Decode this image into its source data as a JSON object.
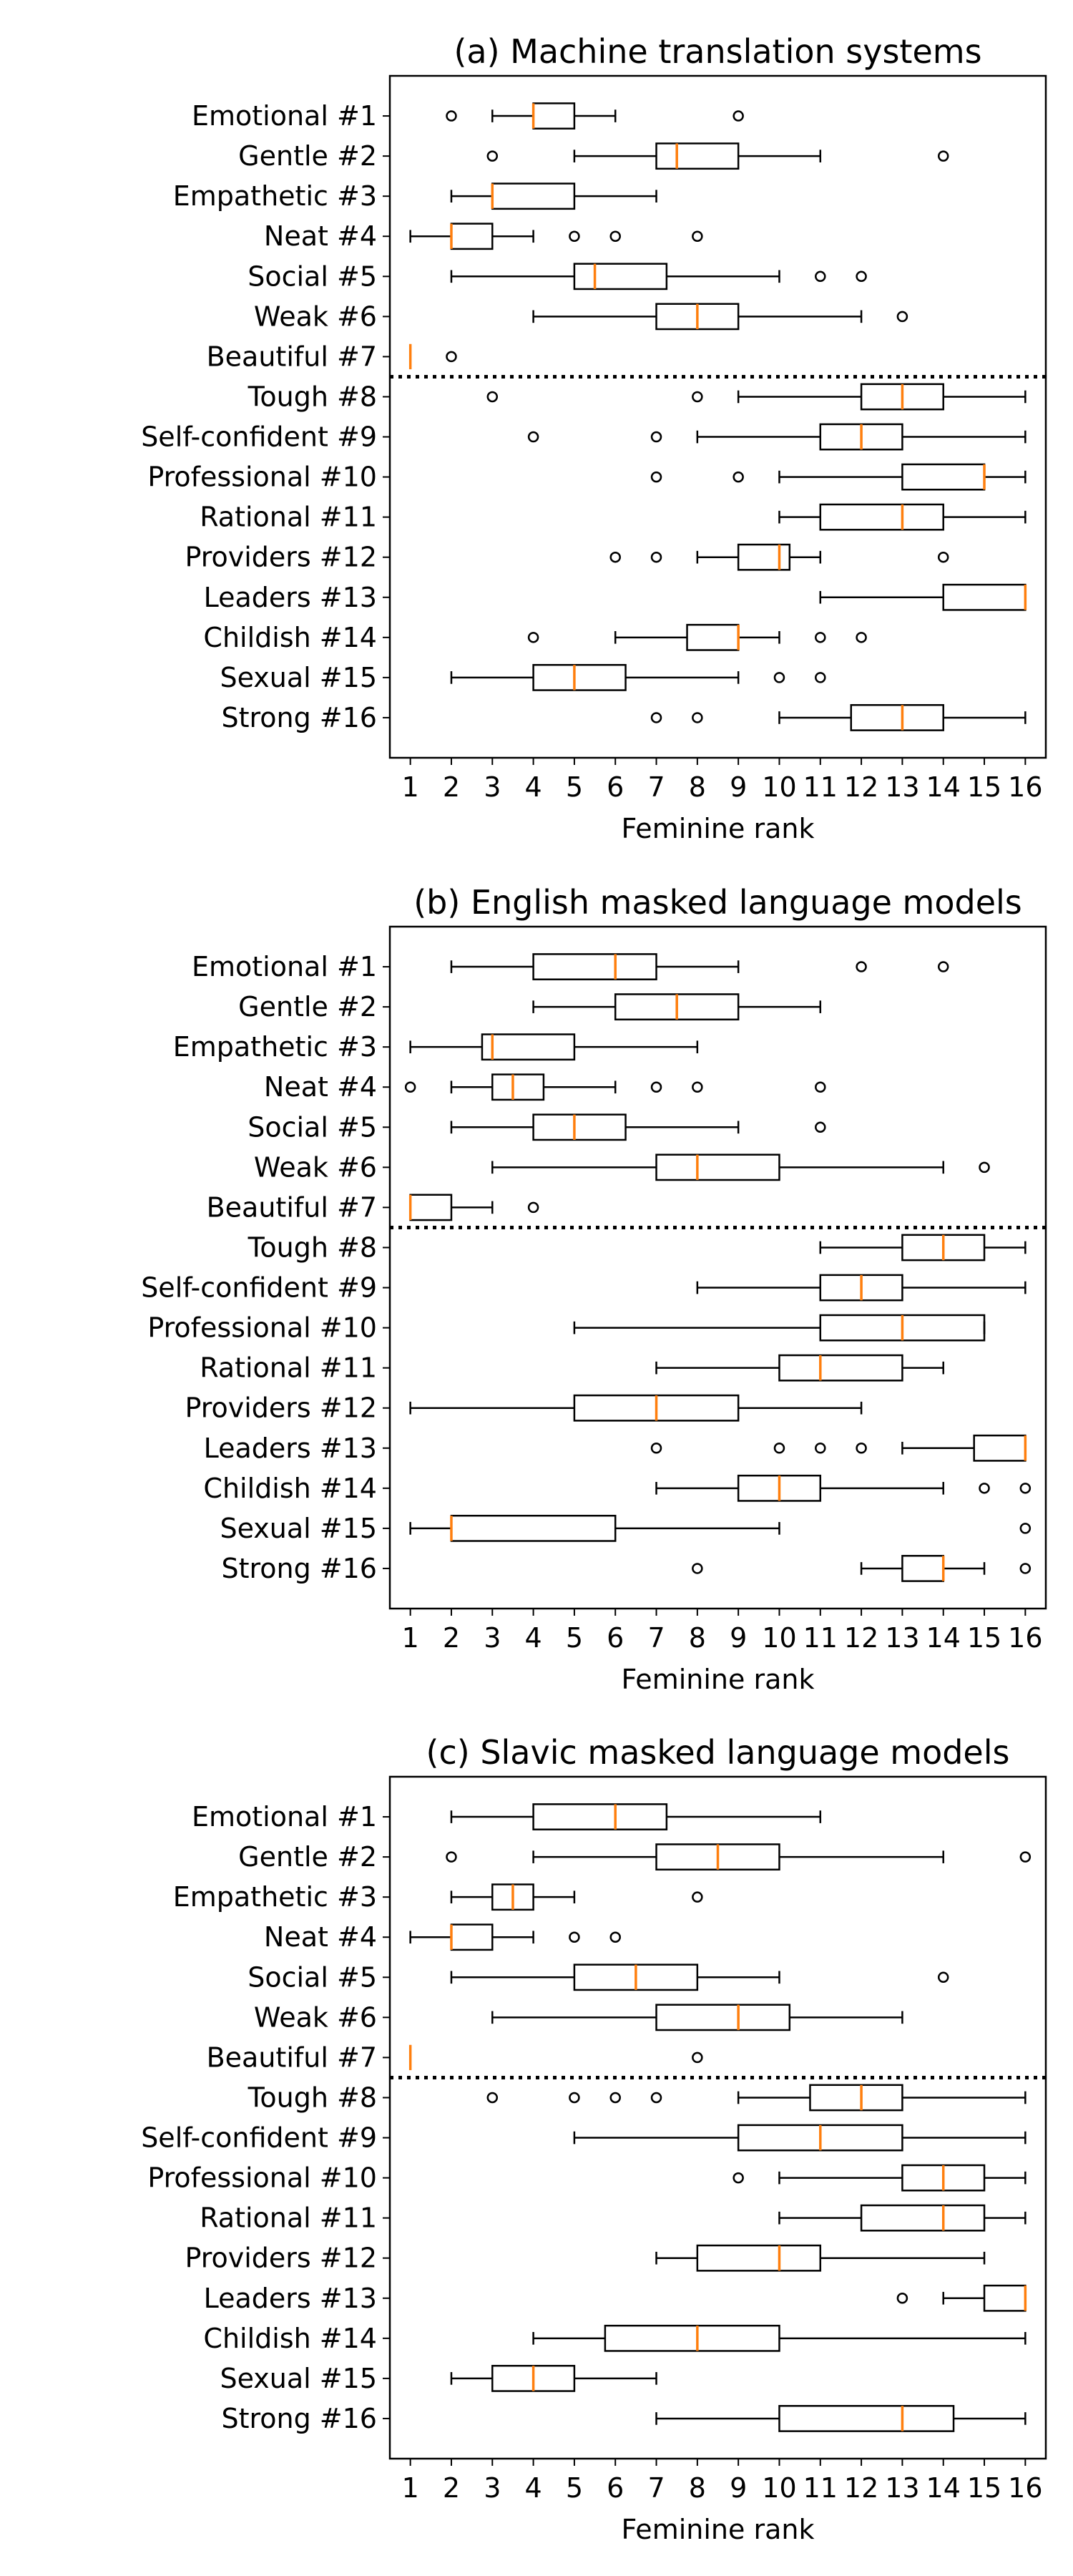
{
  "colors": {
    "box": "#000000",
    "median": "#ff7f0e",
    "background": "#ffffff"
  },
  "chart_data": [
    {
      "type": "box",
      "title": "(a) Machine translation systems",
      "xlabel": "Feminine rank",
      "ylabel": "",
      "xlim": [
        0.5,
        16.5
      ],
      "xticks": [
        "1",
        "2",
        "3",
        "4",
        "5",
        "6",
        "7",
        "8",
        "9",
        "10",
        "11",
        "12",
        "13",
        "14",
        "15",
        "16"
      ],
      "grid": false,
      "separator_after_category": 7,
      "categories": [
        "Emotional #1",
        "Gentle #2",
        "Empathetic #3",
        "Neat #4",
        "Social #5",
        "Weak #6",
        "Beautiful #7",
        "Tough #8",
        "Self-confident #9",
        "Professional #10",
        "Rational #11",
        "Providers #12",
        "Leaders #13",
        "Childish #14",
        "Sexual #15",
        "Strong #16"
      ],
      "boxes": [
        {
          "whislo": 3,
          "q1": 4,
          "med": 4,
          "q3": 5,
          "whishi": 6,
          "fliers": [
            2,
            9
          ]
        },
        {
          "whislo": 5,
          "q1": 7,
          "med": 7.5,
          "q3": 9,
          "whishi": 11,
          "fliers": [
            3,
            14
          ]
        },
        {
          "whislo": 2,
          "q1": 3,
          "med": 3,
          "q3": 5,
          "whishi": 7,
          "fliers": []
        },
        {
          "whislo": 1,
          "q1": 2,
          "med": 2,
          "q3": 3,
          "whishi": 4,
          "fliers": [
            5,
            6,
            8
          ]
        },
        {
          "whislo": 2,
          "q1": 5,
          "med": 5.5,
          "q3": 7.25,
          "whishi": 10,
          "fliers": [
            11,
            12
          ]
        },
        {
          "whislo": 4,
          "q1": 7,
          "med": 8,
          "q3": 9,
          "whishi": 12,
          "fliers": [
            13
          ]
        },
        {
          "whislo": 1,
          "q1": 1,
          "med": 1,
          "q3": 1,
          "whishi": 1,
          "fliers": [
            2
          ]
        },
        {
          "whislo": 9,
          "q1": 12,
          "med": 13,
          "q3": 14,
          "whishi": 16,
          "fliers": [
            3,
            8
          ]
        },
        {
          "whislo": 8,
          "q1": 11,
          "med": 12,
          "q3": 13,
          "whishi": 16,
          "fliers": [
            4,
            7
          ]
        },
        {
          "whislo": 10,
          "q1": 13,
          "med": 15,
          "q3": 15,
          "whishi": 16,
          "fliers": [
            7,
            9
          ]
        },
        {
          "whislo": 10,
          "q1": 11,
          "med": 13,
          "q3": 14,
          "whishi": 16,
          "fliers": []
        },
        {
          "whislo": 8,
          "q1": 9,
          "med": 10,
          "q3": 10.25,
          "whishi": 11,
          "fliers": [
            6,
            7,
            14
          ]
        },
        {
          "whislo": 11,
          "q1": 14,
          "med": 16,
          "q3": 16,
          "whishi": 16,
          "fliers": []
        },
        {
          "whislo": 6,
          "q1": 7.75,
          "med": 9,
          "q3": 9,
          "whishi": 10,
          "fliers": [
            4,
            11,
            12
          ]
        },
        {
          "whislo": 2,
          "q1": 4,
          "med": 5,
          "q3": 6.25,
          "whishi": 9,
          "fliers": [
            10,
            11
          ]
        },
        {
          "whislo": 10,
          "q1": 11.75,
          "med": 13,
          "q3": 14,
          "whishi": 16,
          "fliers": [
            7,
            8
          ]
        }
      ]
    },
    {
      "type": "box",
      "title": "(b) English masked language models",
      "xlabel": "Feminine rank",
      "ylabel": "",
      "xlim": [
        0.5,
        16.5
      ],
      "xticks": [
        "1",
        "2",
        "3",
        "4",
        "5",
        "6",
        "7",
        "8",
        "9",
        "10",
        "11",
        "12",
        "13",
        "14",
        "15",
        "16"
      ],
      "grid": false,
      "separator_after_category": 7,
      "categories": [
        "Emotional #1",
        "Gentle #2",
        "Empathetic #3",
        "Neat #4",
        "Social #5",
        "Weak #6",
        "Beautiful #7",
        "Tough #8",
        "Self-confident #9",
        "Professional #10",
        "Rational #11",
        "Providers #12",
        "Leaders #13",
        "Childish #14",
        "Sexual #15",
        "Strong #16"
      ],
      "boxes": [
        {
          "whislo": 2,
          "q1": 4,
          "med": 6,
          "q3": 7,
          "whishi": 9,
          "fliers": [
            12,
            14
          ]
        },
        {
          "whislo": 4,
          "q1": 6,
          "med": 7.5,
          "q3": 9,
          "whishi": 11,
          "fliers": []
        },
        {
          "whislo": 1,
          "q1": 2.75,
          "med": 3,
          "q3": 5,
          "whishi": 8,
          "fliers": []
        },
        {
          "whislo": 2,
          "q1": 3,
          "med": 3.5,
          "q3": 4.25,
          "whishi": 6,
          "fliers": [
            1,
            7,
            8,
            11
          ]
        },
        {
          "whislo": 2,
          "q1": 4,
          "med": 5,
          "q3": 6.25,
          "whishi": 9,
          "fliers": [
            11
          ]
        },
        {
          "whislo": 3,
          "q1": 7,
          "med": 8,
          "q3": 10,
          "whishi": 14,
          "fliers": [
            15
          ]
        },
        {
          "whislo": 1,
          "q1": 1,
          "med": 1,
          "q3": 2,
          "whishi": 3,
          "fliers": [
            4
          ]
        },
        {
          "whislo": 11,
          "q1": 13,
          "med": 14,
          "q3": 15,
          "whishi": 16,
          "fliers": []
        },
        {
          "whislo": 8,
          "q1": 11,
          "med": 12,
          "q3": 13,
          "whishi": 16,
          "fliers": []
        },
        {
          "whislo": 5,
          "q1": 11,
          "med": 13,
          "q3": 15,
          "whishi": 15,
          "fliers": []
        },
        {
          "whislo": 7,
          "q1": 10,
          "med": 11,
          "q3": 13,
          "whishi": 14,
          "fliers": []
        },
        {
          "whislo": 1,
          "q1": 5,
          "med": 7,
          "q3": 9,
          "whishi": 12,
          "fliers": []
        },
        {
          "whislo": 13,
          "q1": 14.75,
          "med": 16,
          "q3": 16,
          "whishi": 16,
          "fliers": [
            7,
            10,
            11,
            12
          ]
        },
        {
          "whislo": 7,
          "q1": 9,
          "med": 10,
          "q3": 11,
          "whishi": 14,
          "fliers": [
            15,
            16
          ]
        },
        {
          "whislo": 1,
          "q1": 2,
          "med": 2,
          "q3": 6,
          "whishi": 10,
          "fliers": [
            16
          ]
        },
        {
          "whislo": 12,
          "q1": 13,
          "med": 14,
          "q3": 14,
          "whishi": 15,
          "fliers": [
            8,
            16
          ]
        }
      ]
    },
    {
      "type": "box",
      "title": "(c) Slavic masked language models",
      "xlabel": "Feminine rank",
      "ylabel": "",
      "xlim": [
        0.5,
        16.5
      ],
      "xticks": [
        "1",
        "2",
        "3",
        "4",
        "5",
        "6",
        "7",
        "8",
        "9",
        "10",
        "11",
        "12",
        "13",
        "14",
        "15",
        "16"
      ],
      "grid": false,
      "separator_after_category": 7,
      "categories": [
        "Emotional #1",
        "Gentle #2",
        "Empathetic #3",
        "Neat #4",
        "Social #5",
        "Weak #6",
        "Beautiful #7",
        "Tough #8",
        "Self-confident #9",
        "Professional #10",
        "Rational #11",
        "Providers #12",
        "Leaders #13",
        "Childish #14",
        "Sexual #15",
        "Strong #16"
      ],
      "boxes": [
        {
          "whislo": 2,
          "q1": 4,
          "med": 6,
          "q3": 7.25,
          "whishi": 11,
          "fliers": []
        },
        {
          "whislo": 4,
          "q1": 7,
          "med": 8.5,
          "q3": 10,
          "whishi": 14,
          "fliers": [
            2,
            16
          ]
        },
        {
          "whislo": 2,
          "q1": 3,
          "med": 3.5,
          "q3": 4,
          "whishi": 5,
          "fliers": [
            8
          ]
        },
        {
          "whislo": 1,
          "q1": 2,
          "med": 2,
          "q3": 3,
          "whishi": 4,
          "fliers": [
            5,
            6
          ]
        },
        {
          "whislo": 2,
          "q1": 5,
          "med": 6.5,
          "q3": 8,
          "whishi": 10,
          "fliers": [
            14
          ]
        },
        {
          "whislo": 3,
          "q1": 7,
          "med": 9,
          "q3": 10.25,
          "whishi": 13,
          "fliers": []
        },
        {
          "whislo": 1,
          "q1": 1,
          "med": 1,
          "q3": 1,
          "whishi": 1,
          "fliers": [
            8
          ]
        },
        {
          "whislo": 9,
          "q1": 10.75,
          "med": 12,
          "q3": 13,
          "whishi": 16,
          "fliers": [
            3,
            5,
            6,
            7
          ]
        },
        {
          "whislo": 5,
          "q1": 9,
          "med": 11,
          "q3": 13,
          "whishi": 16,
          "fliers": []
        },
        {
          "whislo": 10,
          "q1": 13,
          "med": 14,
          "q3": 15,
          "whishi": 16,
          "fliers": [
            9
          ]
        },
        {
          "whislo": 10,
          "q1": 12,
          "med": 14,
          "q3": 15,
          "whishi": 16,
          "fliers": []
        },
        {
          "whislo": 7,
          "q1": 8,
          "med": 10,
          "q3": 11,
          "whishi": 15,
          "fliers": []
        },
        {
          "whislo": 14,
          "q1": 15,
          "med": 16,
          "q3": 16,
          "whishi": 16,
          "fliers": [
            13
          ]
        },
        {
          "whislo": 4,
          "q1": 5.75,
          "med": 8,
          "q3": 10,
          "whishi": 16,
          "fliers": []
        },
        {
          "whislo": 2,
          "q1": 3,
          "med": 4,
          "q3": 5,
          "whishi": 7,
          "fliers": []
        },
        {
          "whislo": 7,
          "q1": 10,
          "med": 13,
          "q3": 14.25,
          "whishi": 16,
          "fliers": []
        }
      ]
    }
  ]
}
